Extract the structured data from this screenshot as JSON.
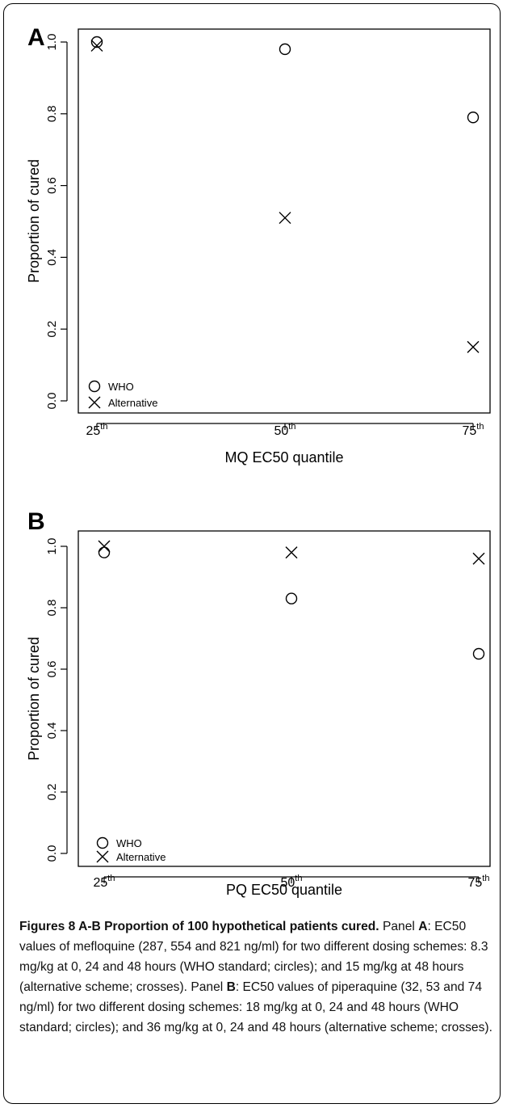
{
  "chart_data": [
    {
      "type": "scatter",
      "panel_label": "A",
      "xlabel": "MQ EC50 quantile",
      "ylabel": "Proportion of cured",
      "x_ticks": [
        {
          "base": "25",
          "sup": "th"
        },
        {
          "base": "50",
          "sup": "th"
        },
        {
          "base": "75",
          "sup": "th"
        }
      ],
      "x": [
        25,
        50,
        75
      ],
      "xlim": [
        25,
        75
      ],
      "ylim": [
        0.0,
        1.0
      ],
      "y_ticks": [
        "0.0",
        "0.2",
        "0.4",
        "0.6",
        "0.8",
        "1.0"
      ],
      "grid": false,
      "legend_position": "bottom-left",
      "series": [
        {
          "name": "WHO",
          "marker": "circle",
          "values": [
            1.0,
            0.98,
            0.79
          ]
        },
        {
          "name": "Alternative",
          "marker": "cross",
          "values": [
            0.99,
            0.51,
            0.15
          ]
        }
      ]
    },
    {
      "type": "scatter",
      "panel_label": "B",
      "xlabel": "PQ EC50 quantile",
      "ylabel": "Proportion of cured",
      "x_ticks": [
        {
          "base": "25",
          "sup": "th"
        },
        {
          "base": "50",
          "sup": "th"
        },
        {
          "base": "75",
          "sup": "th"
        }
      ],
      "x": [
        25,
        50,
        75
      ],
      "xlim": [
        25,
        75
      ],
      "ylim": [
        0.0,
        1.0
      ],
      "y_ticks": [
        "0.0",
        "0.2",
        "0.4",
        "0.6",
        "0.8",
        "1.0"
      ],
      "grid": false,
      "legend_position": "bottom-left",
      "series": [
        {
          "name": "WHO",
          "marker": "circle",
          "values": [
            0.98,
            0.83,
            0.65
          ]
        },
        {
          "name": "Alternative",
          "marker": "cross",
          "values": [
            1.0,
            0.98,
            0.96
          ]
        }
      ]
    }
  ],
  "caption": {
    "title": "Figures 8 A-B Proportion of 100 hypothetical patients cured.",
    "panel_a": {
      "prefix": "Panel ",
      "label": "A",
      "text": ": EC50 values of mefloquine (287, 554 and 821 ng/ml) for two different dosing schemes: 8.3 mg/kg at 0, 24 and 48 hours (WHO standard; circles); and 15 mg/kg at 48 hours (alternative scheme; crosses)."
    },
    "panel_b": {
      "prefix": " Panel ",
      "label": "B",
      "text": ": EC50 values of piperaquine (32, 53 and 74 ng/ml) for two different dosing schemes: 18 mg/kg at 0, 24 and 48 hours (WHO standard; circles); and 36 mg/kg at 0, 24 and 48 hours (alternative scheme; crosses)."
    }
  }
}
